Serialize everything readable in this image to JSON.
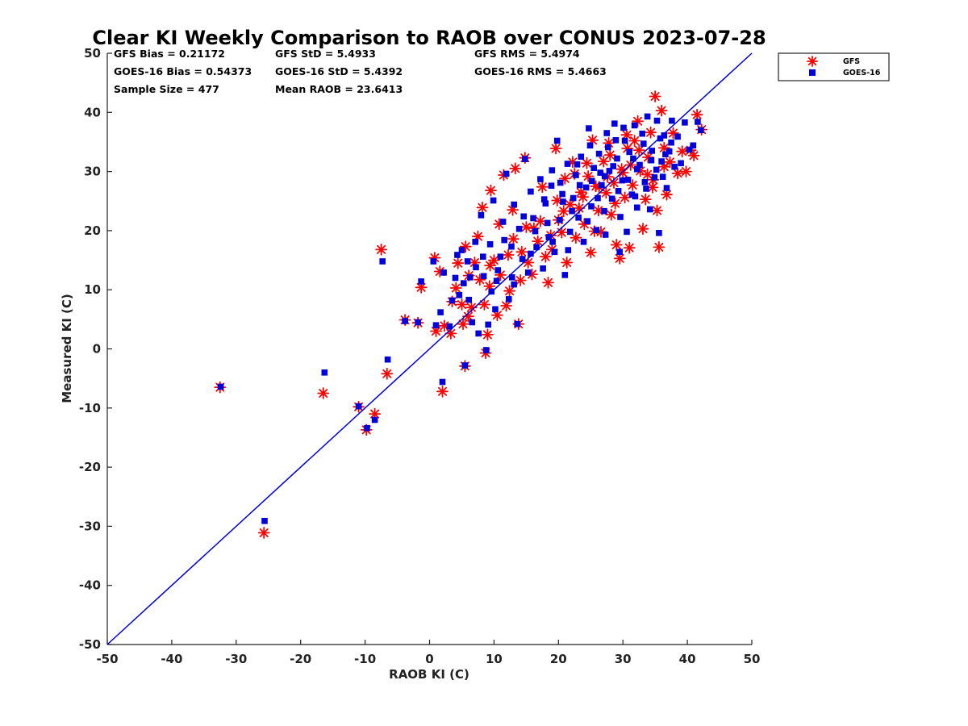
{
  "chart_data": {
    "type": "scatter",
    "title": "Clear KI Weekly Comparison to RAOB over CONUS 2023-07-28",
    "xlabel": "RAOB KI (C)",
    "ylabel": "Measured KI (C)",
    "xlim": [
      -50,
      50
    ],
    "ylim": [
      -50,
      50
    ],
    "xticks": [
      "-50",
      "-40",
      "-30",
      "-20",
      "-10",
      "0",
      "10",
      "20",
      "30",
      "40",
      "50"
    ],
    "yticks": [
      "-50",
      "-40",
      "-30",
      "-20",
      "-10",
      "0",
      "10",
      "20",
      "30",
      "40",
      "50"
    ],
    "grid": false,
    "legend_position": "outside-top-right",
    "reference_line": {
      "type": "one-to-one",
      "color": "#0000dd"
    },
    "colors": {
      "gfs": "#ff0000",
      "goes16": "#0000dd"
    },
    "stats": {
      "gfs_bias": "GFS Bias = 0.21172",
      "gfs_std": "GFS StD = 5.4933",
      "gfs_rms": "GFS RMS = 5.4974",
      "goes_bias": "GOES-16 Bias = 0.54373",
      "goes_std": "GOES-16 StD = 5.4392",
      "goes_rms": "GOES-16 RMS = 5.4663",
      "sample_size": "Sample Size = 477",
      "mean_raob": "Mean RAOB = 23.6413"
    },
    "series": [
      {
        "name": "GFS",
        "marker": "asterisk",
        "points": [
          [
            -32.5,
            -6.5
          ],
          [
            -25.7,
            -31.1
          ],
          [
            -16.5,
            -7.5
          ],
          [
            -11,
            -9.8
          ],
          [
            -9.8,
            -13.7
          ],
          [
            -8.5,
            -11
          ],
          [
            -7.5,
            16.8
          ],
          [
            -6.6,
            -4.2
          ],
          [
            -3.8,
            4.9
          ],
          [
            -1.8,
            4.4
          ],
          [
            -1.3,
            10.4
          ],
          [
            0.8,
            15.4
          ],
          [
            1,
            3
          ],
          [
            1.6,
            13.1
          ],
          [
            2,
            -7.2
          ],
          [
            2.3,
            3.9
          ],
          [
            3.3,
            2.6
          ],
          [
            3.5,
            8
          ],
          [
            4.1,
            10.3
          ],
          [
            4.4,
            14.5
          ],
          [
            5,
            7.5
          ],
          [
            5.2,
            4.2
          ],
          [
            5.5,
            -2.9
          ],
          [
            5.6,
            17.3
          ],
          [
            6,
            5.5
          ],
          [
            6.1,
            12.4
          ],
          [
            6.5,
            7
          ],
          [
            7,
            14.6
          ],
          [
            7.5,
            19
          ],
          [
            8.2,
            23.9
          ],
          [
            8.5,
            7.5
          ],
          [
            8.7,
            -0.7
          ],
          [
            9,
            2.4
          ],
          [
            9.3,
            10.6
          ],
          [
            9.5,
            26.8
          ],
          [
            10,
            15
          ],
          [
            10.5,
            5.7
          ],
          [
            11,
            12.5
          ],
          [
            11.5,
            29.4
          ],
          [
            11.9,
            7.3
          ],
          [
            12.4,
            9.8
          ],
          [
            12.9,
            23.5
          ],
          [
            13.3,
            30.5
          ],
          [
            13.8,
            4.2
          ],
          [
            14.3,
            16.4
          ],
          [
            14.8,
            32.3
          ],
          [
            15.3,
            14.6
          ],
          [
            15.9,
            12.6
          ],
          [
            16.2,
            20.4
          ],
          [
            16.8,
            18.2
          ],
          [
            17.5,
            27.4
          ],
          [
            18,
            15.6
          ],
          [
            18.4,
            11.2
          ],
          [
            19,
            16.8
          ],
          [
            19.6,
            33.9
          ],
          [
            20,
            21.8
          ],
          [
            20.5,
            19.7
          ],
          [
            21,
            28.8
          ],
          [
            21.3,
            14.6
          ],
          [
            21.8,
            24.4
          ],
          [
            22.2,
            31.6
          ],
          [
            22.7,
            18.8
          ],
          [
            23.2,
            23.8
          ],
          [
            23.5,
            26.5
          ],
          [
            24,
            21.1
          ],
          [
            24.6,
            29.2
          ],
          [
            25,
            16.3
          ],
          [
            25.3,
            35.3
          ],
          [
            25.8,
            27.5
          ],
          [
            26.2,
            23.4
          ],
          [
            26.6,
            19.8
          ],
          [
            27,
            31.7
          ],
          [
            27.4,
            26.4
          ],
          [
            27.8,
            34.8
          ],
          [
            28.2,
            22.7
          ],
          [
            28.6,
            28.1
          ],
          [
            29,
            17.6
          ],
          [
            29.5,
            15.3
          ],
          [
            29.8,
            30.4
          ],
          [
            30.3,
            25.6
          ],
          [
            30.7,
            33.9
          ],
          [
            31,
            17.1
          ],
          [
            31.5,
            27.7
          ],
          [
            31.8,
            35.2
          ],
          [
            32.3,
            38.5
          ],
          [
            32.7,
            30.1
          ],
          [
            33.1,
            20.3
          ],
          [
            33.5,
            25.3
          ],
          [
            33.9,
            32.4
          ],
          [
            34.3,
            36.6
          ],
          [
            34.7,
            28.6
          ],
          [
            35,
            42.7
          ],
          [
            35.3,
            23.4
          ],
          [
            35.6,
            17.2
          ],
          [
            36,
            40.3
          ],
          [
            36.4,
            34
          ],
          [
            36.8,
            26.1
          ],
          [
            37.3,
            31.6
          ],
          [
            37.8,
            36.5
          ],
          [
            38.5,
            29.7
          ],
          [
            39.2,
            33.4
          ],
          [
            39.8,
            30
          ],
          [
            40.5,
            33.6
          ],
          [
            41,
            32.7
          ],
          [
            41.5,
            39.6
          ],
          [
            42.2,
            37.1
          ],
          [
            28.8,
            24.6
          ],
          [
            30,
            29.8
          ],
          [
            31.2,
            31.1
          ],
          [
            24.4,
            31.4
          ],
          [
            26.3,
            27.4
          ],
          [
            22.5,
            29.6
          ],
          [
            20.8,
            23.3
          ],
          [
            17.2,
            21.6
          ],
          [
            15,
            20.6
          ],
          [
            13,
            18.6
          ],
          [
            10.8,
            21.1
          ],
          [
            34.6,
            27.3
          ],
          [
            32.5,
            33.6
          ],
          [
            28,
            32.8
          ],
          [
            23.8,
            25.7
          ],
          [
            19.8,
            25.1
          ],
          [
            7.8,
            11.7
          ],
          [
            9.4,
            14.1
          ],
          [
            12.2,
            15.9
          ],
          [
            14.1,
            11.6
          ],
          [
            18.8,
            19.2
          ],
          [
            25.6,
            19.9
          ],
          [
            36.4,
            30.8
          ],
          [
            33.8,
            29.5
          ],
          [
            30.6,
            36.2
          ],
          [
            27.6,
            29.1
          ]
        ]
      },
      {
        "name": "GOES-16",
        "marker": "square",
        "points": [
          [
            -32.4,
            -6.4
          ],
          [
            -25.6,
            -29.1
          ],
          [
            -16.3,
            -4
          ],
          [
            -11,
            -9.7
          ],
          [
            -9.7,
            -13.4
          ],
          [
            -8.5,
            -12
          ],
          [
            -7.3,
            14.8
          ],
          [
            -6.5,
            -1.8
          ],
          [
            -3.8,
            4.7
          ],
          [
            -1.8,
            4.5
          ],
          [
            -1.3,
            11.4
          ],
          [
            0.6,
            14.8
          ],
          [
            1,
            4
          ],
          [
            1.7,
            6.2
          ],
          [
            2,
            -5.6
          ],
          [
            2.2,
            12.9
          ],
          [
            3.1,
            3.8
          ],
          [
            3.5,
            8.2
          ],
          [
            4,
            12
          ],
          [
            4.3,
            15.9
          ],
          [
            4.6,
            9.1
          ],
          [
            5,
            16.7
          ],
          [
            5.3,
            11.1
          ],
          [
            5.5,
            -2.8
          ],
          [
            5.9,
            14.8
          ],
          [
            6.1,
            8.3
          ],
          [
            6.6,
            4.5
          ],
          [
            7.2,
            13.8
          ],
          [
            7.6,
            2.6
          ],
          [
            8,
            22.6
          ],
          [
            8.4,
            12.3
          ],
          [
            8.8,
            -0.2
          ],
          [
            9.1,
            4.1
          ],
          [
            9.4,
            17.7
          ],
          [
            9.9,
            25.1
          ],
          [
            10.2,
            6.7
          ],
          [
            10.6,
            13.3
          ],
          [
            11,
            15.6
          ],
          [
            11.4,
            21.5
          ],
          [
            11.9,
            29.6
          ],
          [
            12.3,
            8.4
          ],
          [
            12.7,
            17.3
          ],
          [
            13.1,
            24.4
          ],
          [
            13.6,
            4.2
          ],
          [
            13.9,
            20.3
          ],
          [
            14.4,
            15.2
          ],
          [
            14.8,
            32.1
          ],
          [
            15.3,
            12.9
          ],
          [
            15.7,
            26.6
          ],
          [
            16.1,
            22.1
          ],
          [
            16.6,
            17.2
          ],
          [
            17.2,
            28.7
          ],
          [
            17.6,
            13.6
          ],
          [
            18,
            24.6
          ],
          [
            18.5,
            18.9
          ],
          [
            19,
            30.2
          ],
          [
            19.4,
            16.4
          ],
          [
            19.8,
            35.2
          ],
          [
            20.2,
            21.8
          ],
          [
            20.6,
            26.2
          ],
          [
            21,
            12.5
          ],
          [
            21.4,
            31.3
          ],
          [
            21.8,
            19.8
          ],
          [
            22.3,
            25.5
          ],
          [
            22.7,
            29.4
          ],
          [
            23.1,
            22.2
          ],
          [
            23.5,
            32.5
          ],
          [
            23.9,
            18.1
          ],
          [
            24.3,
            27.3
          ],
          [
            24.7,
            37.3
          ],
          [
            25.1,
            24.1
          ],
          [
            25.5,
            30.6
          ],
          [
            25.9,
            20.1
          ],
          [
            26.3,
            33
          ],
          [
            26.7,
            27.7
          ],
          [
            27.1,
            23.3
          ],
          [
            27.5,
            36.5
          ],
          [
            27.9,
            30.1
          ],
          [
            28.3,
            25.4
          ],
          [
            28.7,
            38.1
          ],
          [
            29.1,
            32.2
          ],
          [
            29.5,
            16.4
          ],
          [
            29.9,
            28.5
          ],
          [
            30.3,
            35.2
          ],
          [
            30.6,
            19.8
          ],
          [
            31,
            33.3
          ],
          [
            31.4,
            26.1
          ],
          [
            31.8,
            37.8
          ],
          [
            32.2,
            23.9
          ],
          [
            32.6,
            31.1
          ],
          [
            33,
            36.4
          ],
          [
            33.4,
            28.2
          ],
          [
            33.8,
            39.3
          ],
          [
            34.2,
            23.6
          ],
          [
            34.5,
            33.5
          ],
          [
            34.9,
            29
          ],
          [
            35.3,
            38.6
          ],
          [
            35.6,
            19.6
          ],
          [
            36,
            31.7
          ],
          [
            36.4,
            36.1
          ],
          [
            36.8,
            27.2
          ],
          [
            37.2,
            33.4
          ],
          [
            37.6,
            38.6
          ],
          [
            38,
            30.8
          ],
          [
            38.5,
            35.9
          ],
          [
            39,
            31.4
          ],
          [
            39.6,
            38.3
          ],
          [
            40.3,
            33.7
          ],
          [
            40.9,
            34.4
          ],
          [
            41.6,
            38.4
          ],
          [
            42.1,
            37
          ],
          [
            26.5,
            29.8
          ],
          [
            28.5,
            30.9
          ],
          [
            30.8,
            28.6
          ],
          [
            32.2,
            30.4
          ],
          [
            25.2,
            28.4
          ],
          [
            27.7,
            34.1
          ],
          [
            29.3,
            26.7
          ],
          [
            31.6,
            32.2
          ],
          [
            24.5,
            21.6
          ],
          [
            22.1,
            23.3
          ],
          [
            20.3,
            28.1
          ],
          [
            18.3,
            21.3
          ],
          [
            16.4,
            19.9
          ],
          [
            14.6,
            22.4
          ],
          [
            13.1,
            10.9
          ],
          [
            11.6,
            18.4
          ],
          [
            9.6,
            9.7
          ],
          [
            8.3,
            15.6
          ],
          [
            7.1,
            18.1
          ],
          [
            6.3,
            12.1
          ],
          [
            33.2,
            34.7
          ],
          [
            34.4,
            31.9
          ],
          [
            35.8,
            35.6
          ],
          [
            36.6,
            32.9
          ],
          [
            30.1,
            37.4
          ],
          [
            28.9,
            35.3
          ],
          [
            27.2,
            29.2
          ],
          [
            26.1,
            25.5
          ],
          [
            23.3,
            27.7
          ],
          [
            21.5,
            16.7
          ],
          [
            19.1,
            18.1
          ],
          [
            17.8,
            25.3
          ],
          [
            15.7,
            16.1
          ],
          [
            12.8,
            12.1
          ],
          [
            10.4,
            11.5
          ],
          [
            24.9,
            34.4
          ],
          [
            27.3,
            19.3
          ],
          [
            29.6,
            22.3
          ],
          [
            31.9,
            25.8
          ],
          [
            33.6,
            27.1
          ],
          [
            35.2,
            30.3
          ],
          [
            36.2,
            29.1
          ],
          [
            37.5,
            34.9
          ],
          [
            22.9,
            31.2
          ],
          [
            20.7,
            24.9
          ],
          [
            18.9,
            27.6
          ]
        ]
      }
    ]
  },
  "legend": [
    {
      "label": "GFS",
      "color": "#ff0000"
    },
    {
      "label": "GOES-16",
      "color": "#0000dd"
    }
  ]
}
